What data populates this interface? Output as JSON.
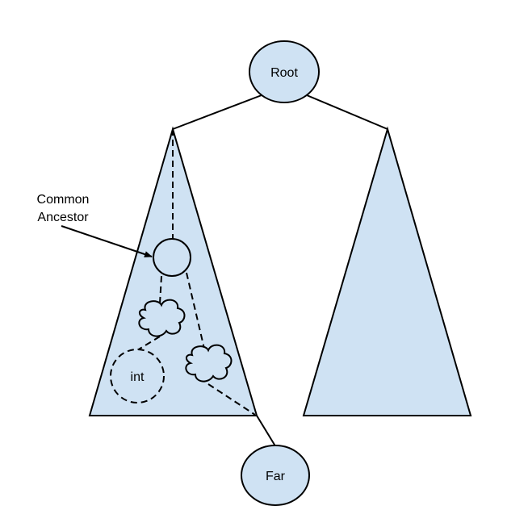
{
  "nodes": {
    "root": "Root",
    "far": "Far",
    "int": "int"
  },
  "annotation": {
    "line1": "Common",
    "line2": "Ancestor"
  },
  "colors": {
    "fill": "#cfe2f3",
    "stroke": "#000000",
    "background": "#ffffff"
  }
}
